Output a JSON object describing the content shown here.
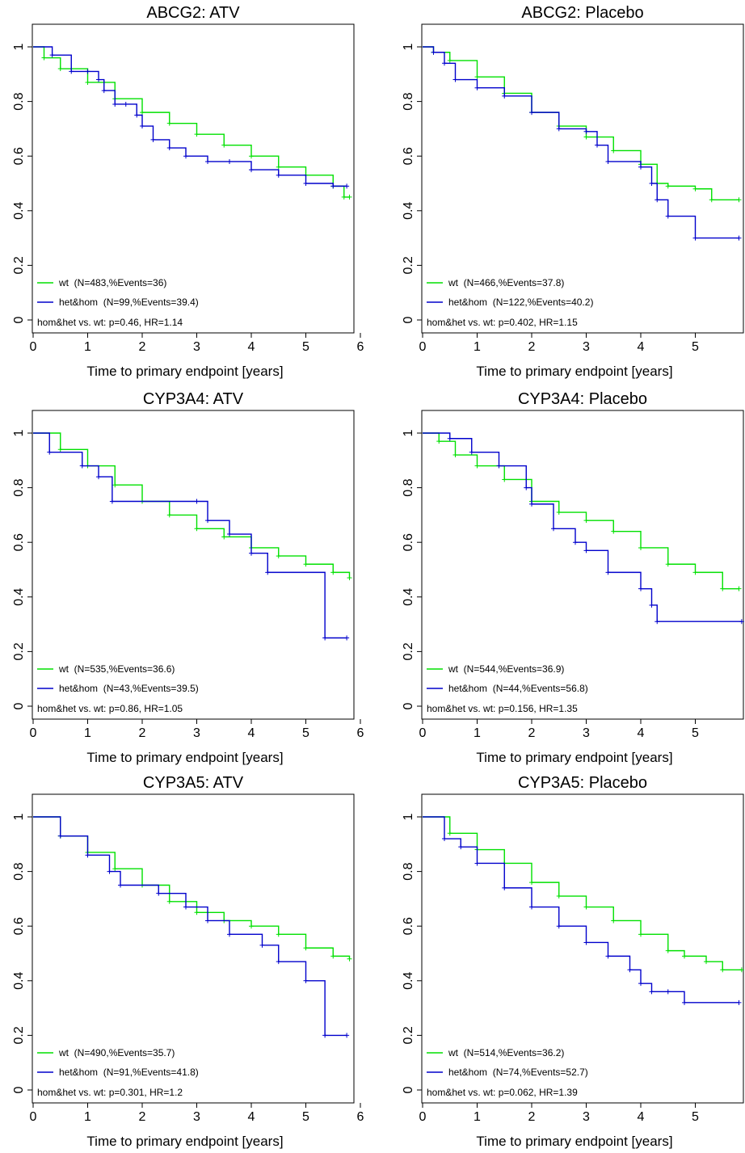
{
  "colors": {
    "wt": "#00e000",
    "het": "#0000cc",
    "axis": "#000000"
  },
  "chart_data": [
    {
      "type": "line",
      "title": "ABCG2: ATV",
      "xlabel": "Time to primary endpoint [years]",
      "ylabel": "",
      "xlim": [
        0,
        6
      ],
      "ylim": [
        0,
        1
      ],
      "xticks": [
        "0",
        "1",
        "2",
        "3",
        "4",
        "5",
        "6"
      ],
      "yticks": [
        "0",
        "0.2",
        "0.4",
        "0.6",
        "0.8",
        "1"
      ],
      "legend": {
        "position": "bottom-left",
        "wt_label": "wt  (N=483,%Events=36)",
        "het_label": "het&hom  (N=99,%Events=39.4)",
        "stat_text": "hom&het vs. wt: p=0.46, HR=1.14"
      },
      "series": [
        {
          "name": "wt",
          "x": [
            0,
            0.2,
            0.5,
            1.0,
            1.5,
            2.0,
            2.5,
            3.0,
            3.5,
            4.0,
            4.5,
            5.0,
            5.5,
            5.7,
            5.8
          ],
          "y": [
            1,
            0.96,
            0.92,
            0.87,
            0.81,
            0.76,
            0.72,
            0.68,
            0.64,
            0.6,
            0.56,
            0.53,
            0.49,
            0.45,
            0.45
          ]
        },
        {
          "name": "het&hom",
          "x": [
            0,
            0.35,
            0.7,
            1.0,
            1.2,
            1.3,
            1.5,
            1.7,
            1.9,
            2.0,
            2.2,
            2.5,
            2.8,
            3.2,
            3.6,
            4.0,
            4.5,
            5.0,
            5.5,
            5.75
          ],
          "y": [
            1,
            0.97,
            0.91,
            0.91,
            0.88,
            0.84,
            0.79,
            0.79,
            0.75,
            0.71,
            0.66,
            0.63,
            0.6,
            0.58,
            0.58,
            0.55,
            0.53,
            0.5,
            0.49,
            0.49
          ]
        }
      ]
    },
    {
      "type": "line",
      "title": "ABCG2: Placebo",
      "xlabel": "Time to primary endpoint [years]",
      "ylabel": "",
      "xlim": [
        0,
        6
      ],
      "ylim": [
        0,
        1
      ],
      "xticks": [
        "0",
        "1",
        "2",
        "3",
        "4",
        "5",
        "6"
      ],
      "yticks": [
        "0",
        "0.2",
        "0.4",
        "0.6",
        "0.8",
        "1"
      ],
      "legend": {
        "position": "bottom-left",
        "wt_label": "wt  (N=466,%Events=37.8)",
        "het_label": "het&hom  (N=122,%Events=40.2)",
        "stat_text": "hom&het vs. wt: p=0.402, HR=1.15"
      },
      "series": [
        {
          "name": "wt",
          "x": [
            0,
            0.2,
            0.5,
            1.0,
            1.5,
            2.0,
            2.5,
            3.0,
            3.5,
            4.0,
            4.3,
            4.5,
            5.0,
            5.3,
            5.8
          ],
          "y": [
            1,
            0.98,
            0.95,
            0.89,
            0.83,
            0.76,
            0.71,
            0.67,
            0.62,
            0.57,
            0.5,
            0.49,
            0.48,
            0.44,
            0.44
          ]
        },
        {
          "name": "het&hom",
          "x": [
            0,
            0.2,
            0.4,
            0.6,
            1.0,
            1.5,
            2.0,
            2.5,
            3.0,
            3.2,
            3.4,
            4.0,
            4.2,
            4.3,
            4.5,
            5.0,
            5.8
          ],
          "y": [
            1,
            0.98,
            0.94,
            0.88,
            0.85,
            0.82,
            0.76,
            0.7,
            0.69,
            0.64,
            0.58,
            0.56,
            0.5,
            0.44,
            0.38,
            0.3,
            0.3
          ]
        }
      ]
    },
    {
      "type": "line",
      "title": "CYP3A4: ATV",
      "xlabel": "Time to primary endpoint [years]",
      "ylabel": "",
      "xlim": [
        0,
        6
      ],
      "ylim": [
        0,
        1
      ],
      "xticks": [
        "0",
        "1",
        "2",
        "3",
        "4",
        "5",
        "6"
      ],
      "yticks": [
        "0",
        "0.2",
        "0.4",
        "0.6",
        "0.8",
        "1"
      ],
      "legend": {
        "position": "bottom-left",
        "wt_label": "wt  (N=535,%Events=36.6)",
        "het_label": "het&hom  (N=43,%Events=39.5)",
        "stat_text": "hom&het vs. wt: p=0.86, HR=1.05"
      },
      "series": [
        {
          "name": "wt",
          "x": [
            0,
            0.5,
            1.0,
            1.5,
            2.0,
            2.5,
            3.0,
            3.5,
            4.0,
            4.5,
            5.0,
            5.5,
            5.8
          ],
          "y": [
            1,
            0.94,
            0.88,
            0.81,
            0.75,
            0.7,
            0.65,
            0.62,
            0.58,
            0.55,
            0.52,
            0.49,
            0.47
          ]
        },
        {
          "name": "het&hom",
          "x": [
            0,
            0.3,
            0.9,
            1.2,
            1.45,
            3.0,
            3.2,
            3.6,
            4.0,
            4.3,
            5.35,
            5.75
          ],
          "y": [
            1,
            0.93,
            0.88,
            0.84,
            0.75,
            0.75,
            0.68,
            0.63,
            0.56,
            0.49,
            0.25,
            0.25
          ]
        }
      ]
    },
    {
      "type": "line",
      "title": "CYP3A4: Placebo",
      "xlabel": "Time to primary endpoint [years]",
      "ylabel": "",
      "xlim": [
        0,
        6
      ],
      "ylim": [
        0,
        1
      ],
      "xticks": [
        "0",
        "1",
        "2",
        "3",
        "4",
        "5",
        "6"
      ],
      "yticks": [
        "0",
        "0.2",
        "0.4",
        "0.6",
        "0.8",
        "1"
      ],
      "legend": {
        "position": "bottom-left",
        "wt_label": "wt  (N=544,%Events=36.9)",
        "het_label": "het&hom  (N=44,%Events=56.8)",
        "stat_text": "hom&het vs. wt: p=0.156, HR=1.35"
      },
      "series": [
        {
          "name": "wt",
          "x": [
            0,
            0.3,
            0.6,
            1.0,
            1.5,
            2.0,
            2.5,
            3.0,
            3.5,
            4.0,
            4.5,
            5.0,
            5.5,
            5.8
          ],
          "y": [
            1,
            0.97,
            0.92,
            0.88,
            0.83,
            0.75,
            0.71,
            0.68,
            0.64,
            0.58,
            0.52,
            0.49,
            0.43,
            0.43
          ]
        },
        {
          "name": "het&hom",
          "x": [
            0,
            0.5,
            0.9,
            1.4,
            1.9,
            2.0,
            2.4,
            2.8,
            3.0,
            3.4,
            4.0,
            4.2,
            4.3,
            5.85
          ],
          "y": [
            1,
            0.98,
            0.93,
            0.88,
            0.8,
            0.74,
            0.65,
            0.6,
            0.57,
            0.49,
            0.43,
            0.37,
            0.31,
            0.31
          ]
        }
      ]
    },
    {
      "type": "line",
      "title": "CYP3A5: ATV",
      "xlabel": "Time to primary endpoint [years]",
      "ylabel": "",
      "xlim": [
        0,
        6
      ],
      "ylim": [
        0,
        1
      ],
      "xticks": [
        "0",
        "1",
        "2",
        "3",
        "4",
        "5",
        "6"
      ],
      "yticks": [
        "0",
        "0.2",
        "0.4",
        "0.6",
        "0.8",
        "1"
      ],
      "legend": {
        "position": "bottom-left",
        "wt_label": "wt  (N=490,%Events=35.7)",
        "het_label": "het&hom  (N=91,%Events=41.8)",
        "stat_text": "hom&het vs. wt: p=0.301, HR=1.2"
      },
      "series": [
        {
          "name": "wt",
          "x": [
            0,
            0.5,
            1.0,
            1.5,
            2.0,
            2.5,
            3.0,
            3.5,
            4.0,
            4.5,
            5.0,
            5.5,
            5.8
          ],
          "y": [
            1,
            0.93,
            0.87,
            0.81,
            0.75,
            0.69,
            0.65,
            0.62,
            0.6,
            0.57,
            0.52,
            0.49,
            0.48
          ]
        },
        {
          "name": "het&hom",
          "x": [
            0,
            0.5,
            1.0,
            1.4,
            1.6,
            2.3,
            2.8,
            3.2,
            3.6,
            4.2,
            4.5,
            5.0,
            5.35,
            5.75
          ],
          "y": [
            1,
            0.93,
            0.86,
            0.8,
            0.75,
            0.72,
            0.67,
            0.62,
            0.57,
            0.53,
            0.47,
            0.4,
            0.2,
            0.2
          ]
        }
      ]
    },
    {
      "type": "line",
      "title": "CYP3A5: Placebo",
      "xlabel": "Time to primary endpoint [years]",
      "ylabel": "",
      "xlim": [
        0,
        6
      ],
      "ylim": [
        0,
        1
      ],
      "xticks": [
        "0",
        "1",
        "2",
        "3",
        "4",
        "5",
        "6"
      ],
      "yticks": [
        "0",
        "0.2",
        "0.4",
        "0.6",
        "0.8",
        "1"
      ],
      "legend": {
        "position": "bottom-left",
        "wt_label": "wt  (N=514,%Events=36.2)",
        "het_label": "het&hom  (N=74,%Events=52.7)",
        "stat_text": "hom&het vs. wt: p=0.062, HR=1.39"
      },
      "series": [
        {
          "name": "wt",
          "x": [
            0,
            0.5,
            1.0,
            1.5,
            2.0,
            2.5,
            3.0,
            3.5,
            4.0,
            4.5,
            4.8,
            5.2,
            5.5,
            5.85
          ],
          "y": [
            1,
            0.94,
            0.88,
            0.83,
            0.76,
            0.71,
            0.67,
            0.62,
            0.57,
            0.51,
            0.49,
            0.47,
            0.44,
            0.44
          ]
        },
        {
          "name": "het&hom",
          "x": [
            0,
            0.4,
            0.7,
            1.0,
            1.5,
            2.0,
            2.5,
            3.0,
            3.4,
            3.8,
            4.0,
            4.2,
            4.5,
            4.8,
            5.8
          ],
          "y": [
            1,
            0.92,
            0.89,
            0.83,
            0.74,
            0.67,
            0.6,
            0.54,
            0.49,
            0.44,
            0.39,
            0.36,
            0.36,
            0.32,
            0.32
          ]
        }
      ]
    }
  ]
}
